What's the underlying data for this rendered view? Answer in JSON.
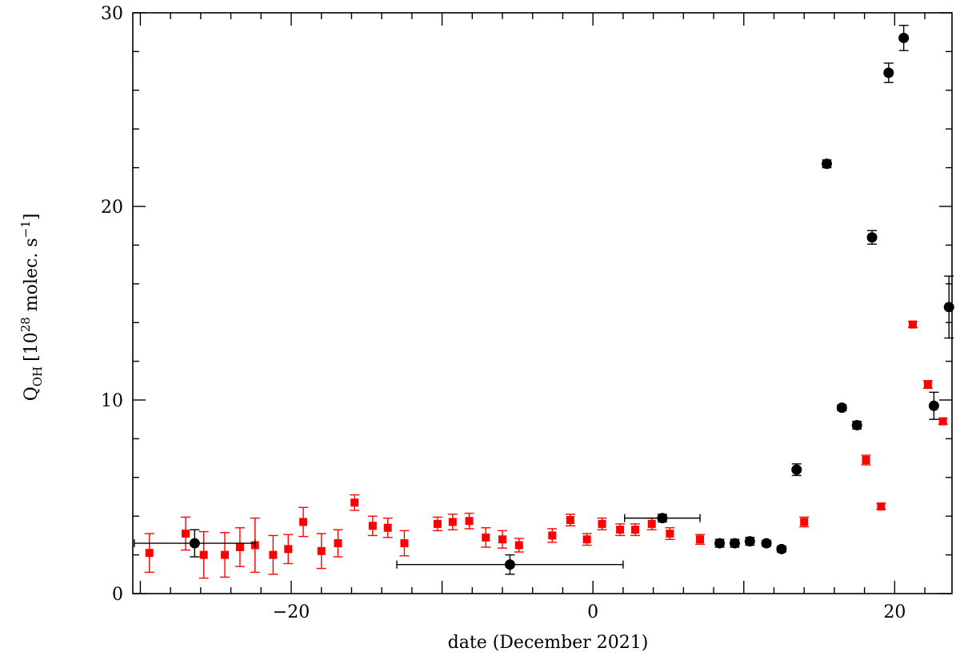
{
  "chart_data": {
    "type": "scatter",
    "title": "",
    "xlabel": "date (December 2021)",
    "ylabel_main": "Q",
    "ylabel_sub": "OH",
    "ylabel_unit": "[10",
    "ylabel_exp1": "28",
    "ylabel_unit2": " molec. s",
    "ylabel_exp2": "−1",
    "ylabel_close": "]",
    "xlim": [
      -30.5,
      23.8
    ],
    "ylim": [
      0,
      30
    ],
    "x_ticks": [
      -20,
      0,
      20
    ],
    "x_tick_labels": [
      "−20",
      "0",
      "20"
    ],
    "y_ticks": [
      0,
      10,
      20,
      30
    ],
    "y_tick_labels": [
      "0",
      "10",
      "20",
      "30"
    ],
    "grid": false,
    "series": [
      {
        "marker": "square",
        "color": "#ff0000",
        "points": [
          {
            "x": -29.4,
            "y": 2.1,
            "err": 1.0
          },
          {
            "x": -27.0,
            "y": 3.1,
            "err": 0.85
          },
          {
            "x": -25.8,
            "y": 2.0,
            "err": 1.2
          },
          {
            "x": -24.4,
            "y": 2.0,
            "err": 1.15
          },
          {
            "x": -23.4,
            "y": 2.4,
            "err": 1.0
          },
          {
            "x": -22.4,
            "y": 2.5,
            "err": 1.4
          },
          {
            "x": -21.2,
            "y": 2.0,
            "err": 1.0
          },
          {
            "x": -20.2,
            "y": 2.3,
            "err": 0.75
          },
          {
            "x": -19.2,
            "y": 3.7,
            "err": 0.75
          },
          {
            "x": -18.0,
            "y": 2.2,
            "err": 0.9
          },
          {
            "x": -16.9,
            "y": 2.6,
            "err": 0.7
          },
          {
            "x": -15.8,
            "y": 4.7,
            "err": 0.4
          },
          {
            "x": -14.6,
            "y": 3.5,
            "err": 0.5
          },
          {
            "x": -13.6,
            "y": 3.4,
            "err": 0.5
          },
          {
            "x": -12.5,
            "y": 2.6,
            "err": 0.65
          },
          {
            "x": -10.3,
            "y": 3.6,
            "err": 0.35
          },
          {
            "x": -9.3,
            "y": 3.7,
            "err": 0.4
          },
          {
            "x": -8.2,
            "y": 3.75,
            "err": 0.4
          },
          {
            "x": -7.1,
            "y": 2.9,
            "err": 0.5
          },
          {
            "x": -6.0,
            "y": 2.8,
            "err": 0.45
          },
          {
            "x": -4.9,
            "y": 2.5,
            "err": 0.35
          },
          {
            "x": -2.7,
            "y": 3.0,
            "err": 0.35
          },
          {
            "x": -1.5,
            "y": 3.8,
            "err": 0.3
          },
          {
            "x": -0.4,
            "y": 2.8,
            "err": 0.3
          },
          {
            "x": 0.6,
            "y": 3.6,
            "err": 0.3
          },
          {
            "x": 1.8,
            "y": 3.3,
            "err": 0.3
          },
          {
            "x": 2.8,
            "y": 3.3,
            "err": 0.3
          },
          {
            "x": 3.9,
            "y": 3.6,
            "err": 0.3
          },
          {
            "x": 5.1,
            "y": 3.1,
            "err": 0.3
          },
          {
            "x": 7.1,
            "y": 2.8,
            "err": 0.25
          },
          {
            "x": 14.0,
            "y": 3.7,
            "err": 0.25
          },
          {
            "x": 18.1,
            "y": 6.9,
            "err": 0.25
          },
          {
            "x": 19.1,
            "y": 4.5,
            "err": 0.15
          },
          {
            "x": 21.2,
            "y": 13.9,
            "err": 0.15
          },
          {
            "x": 22.2,
            "y": 10.8,
            "err": 0.2
          },
          {
            "x": 23.2,
            "y": 8.9,
            "err": 0.15
          }
        ]
      },
      {
        "marker": "circle",
        "color": "#000000",
        "points": [
          {
            "x": -26.4,
            "y": 2.6,
            "err": 0.7,
            "xerr": 4.0
          },
          {
            "x": -5.5,
            "y": 1.5,
            "err": 0.5,
            "xerr": 7.5
          },
          {
            "x": 4.6,
            "y": 3.9,
            "err": 0.2,
            "xerr": 2.5
          },
          {
            "x": 8.4,
            "y": 2.6,
            "err": 0.2
          },
          {
            "x": 9.4,
            "y": 2.6,
            "err": 0.2
          },
          {
            "x": 10.4,
            "y": 2.7,
            "err": 0.2
          },
          {
            "x": 11.5,
            "y": 2.6,
            "err": 0.15
          },
          {
            "x": 12.5,
            "y": 2.3,
            "err": 0.15
          },
          {
            "x": 13.5,
            "y": 6.4,
            "err": 0.3
          },
          {
            "x": 15.5,
            "y": 22.2,
            "err": 0.2
          },
          {
            "x": 16.5,
            "y": 9.6,
            "err": 0.15
          },
          {
            "x": 17.5,
            "y": 8.7,
            "err": 0.2
          },
          {
            "x": 18.5,
            "y": 18.4,
            "err": 0.35
          },
          {
            "x": 19.6,
            "y": 26.9,
            "err": 0.5
          },
          {
            "x": 20.6,
            "y": 28.7,
            "err": 0.65
          },
          {
            "x": 22.6,
            "y": 9.7,
            "err": 0.7
          },
          {
            "x": 23.6,
            "y": 14.8,
            "err": 1.6
          }
        ]
      }
    ]
  }
}
